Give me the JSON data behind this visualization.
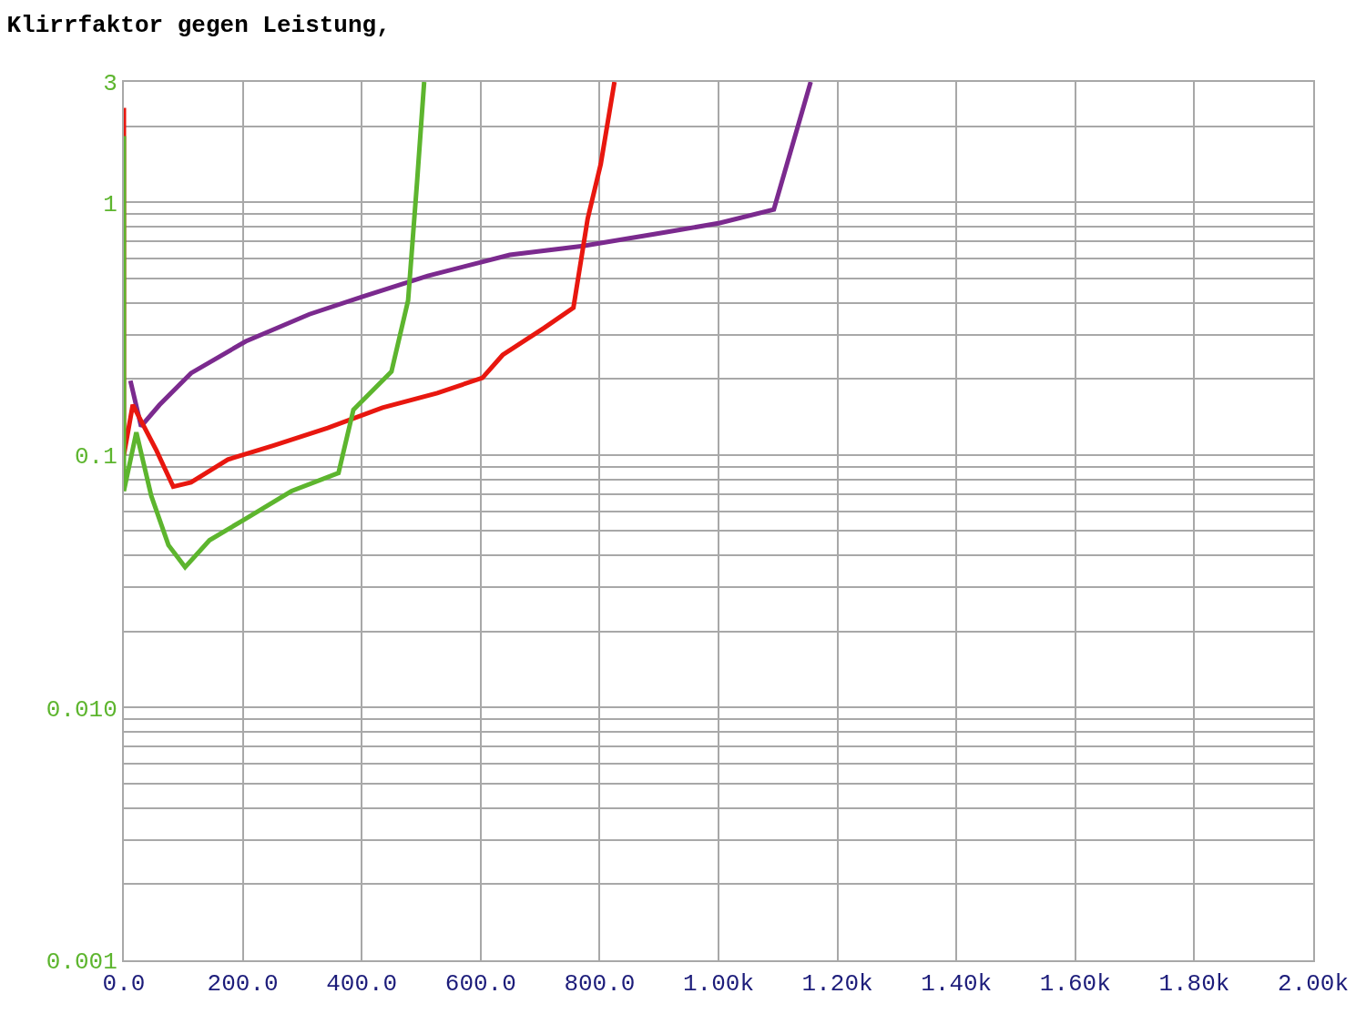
{
  "chart_data": {
    "type": "line",
    "title": "Klirrfaktor gegen Leistung,",
    "log": "y",
    "grid": true,
    "marker": "none",
    "line_style": "solid",
    "xlim": [
      0,
      2000
    ],
    "xticks": [
      {
        "value": 0,
        "label": "0.0"
      },
      {
        "value": 200,
        "label": "200.0"
      },
      {
        "value": 400,
        "label": "400.0"
      },
      {
        "value": 600,
        "label": "600.0"
      },
      {
        "value": 800,
        "label": "800.0"
      },
      {
        "value": 1000,
        "label": "1.00k"
      },
      {
        "value": 1200,
        "label": "1.20k"
      },
      {
        "value": 1400,
        "label": "1.40k"
      },
      {
        "value": 1600,
        "label": "1.60k"
      },
      {
        "value": 1800,
        "label": "1.80k"
      },
      {
        "value": 2000,
        "label": "2.00k"
      }
    ],
    "ylim": [
      0.001,
      3
    ],
    "yticks": [
      {
        "value": 0.001,
        "label": "0.001"
      },
      {
        "value": 0.01,
        "label": "0.010"
      },
      0.1,
      1,
      3
    ],
    "series": [
      {
        "color": "#7b2a8e",
        "x": [
          11,
          29,
          60,
          113,
          205,
          312,
          404,
          511,
          649,
          772,
          894,
          1002,
          1093,
          1155
        ],
        "values": [
          0.197,
          0.13,
          0.158,
          0.211,
          0.282,
          0.361,
          0.426,
          0.512,
          0.62,
          0.673,
          0.75,
          0.829,
          0.937,
          3
        ]
      },
      {
        "color": "#e8170f",
        "x": [
          0,
          0,
          15,
          55,
          83,
          113,
          175,
          251,
          343,
          435,
          527,
          603,
          637,
          707,
          756,
          780,
          802,
          825
        ],
        "values": [
          2.37,
          0.1,
          0.158,
          0.104,
          0.075,
          0.078,
          0.096,
          0.109,
          0.128,
          0.154,
          0.176,
          0.202,
          0.249,
          0.319,
          0.383,
          0.863,
          1.42,
          3
        ]
      },
      {
        "color": "#5db52e",
        "x": [
          0,
          0,
          21,
          46,
          75,
          103,
          144,
          205,
          282,
          361,
          386,
          450,
          478,
          493,
          505
        ],
        "values": [
          1.83,
          0.072,
          0.123,
          0.069,
          0.044,
          0.036,
          0.046,
          0.056,
          0.072,
          0.085,
          0.151,
          0.214,
          0.409,
          1.2,
          3
        ]
      }
    ]
  }
}
